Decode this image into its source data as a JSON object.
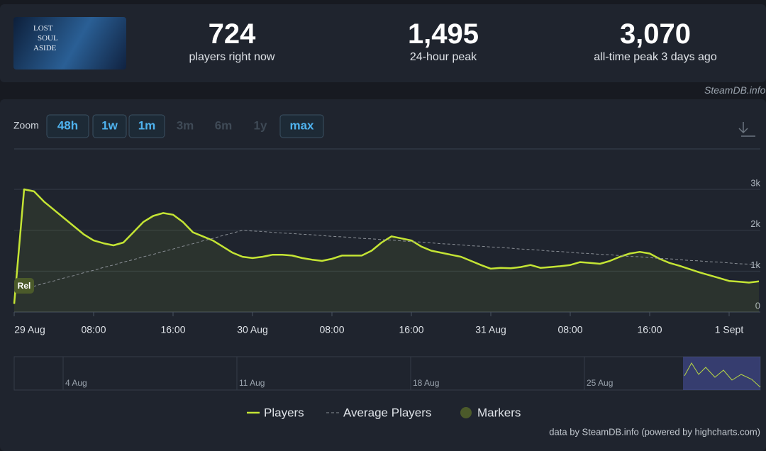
{
  "header": {
    "logo_text": [
      "LOST",
      "SOUL",
      "ASIDE"
    ],
    "stats": [
      {
        "value": "724",
        "label": "players right now"
      },
      {
        "value": "1,495",
        "label": "24-hour peak"
      },
      {
        "value": "3,070",
        "label": "all-time peak 3 days ago"
      }
    ]
  },
  "watermark": "SteamDB.info",
  "zoom": {
    "label": "Zoom",
    "buttons": [
      {
        "text": "48h",
        "state": "active"
      },
      {
        "text": "1w",
        "state": "active"
      },
      {
        "text": "1m",
        "state": "active"
      },
      {
        "text": "3m",
        "state": "disabled"
      },
      {
        "text": "6m",
        "state": "disabled"
      },
      {
        "text": "1y",
        "state": "disabled"
      },
      {
        "text": "max",
        "state": "selected"
      }
    ]
  },
  "chart_data": {
    "type": "line",
    "categories": [
      "29 Aug",
      null,
      null,
      null,
      null,
      null,
      null,
      null,
      "08:00",
      null,
      null,
      null,
      null,
      null,
      null,
      null,
      "16:00",
      null,
      null,
      null,
      null,
      null,
      null,
      null,
      "30 Aug",
      null,
      null,
      null,
      null,
      null,
      null,
      null,
      "08:00",
      null,
      null,
      null,
      null,
      null,
      null,
      null,
      "16:00",
      null,
      null,
      null,
      null,
      null,
      null,
      null,
      "31 Aug",
      null,
      null,
      null,
      null,
      null,
      null,
      null,
      "08:00",
      null,
      null,
      null,
      null,
      null,
      null,
      null,
      "16:00",
      null,
      null,
      null,
      null,
      null,
      null,
      null,
      "1 Sept",
      null,
      null,
      null
    ],
    "series": [
      {
        "name": "Players",
        "color": "#c4e434",
        "values": [
          200,
          3000,
          2950,
          2700,
          2500,
          2300,
          2100,
          1900,
          1750,
          1680,
          1630,
          1700,
          1950,
          2200,
          2350,
          2420,
          2380,
          2200,
          1950,
          1850,
          1750,
          1600,
          1450,
          1350,
          1320,
          1350,
          1400,
          1400,
          1380,
          1320,
          1280,
          1250,
          1300,
          1380,
          1380,
          1380,
          1500,
          1700,
          1850,
          1800,
          1750,
          1600,
          1500,
          1450,
          1400,
          1350,
          1250,
          1150,
          1060,
          1080,
          1070,
          1100,
          1150,
          1080,
          1100,
          1120,
          1150,
          1220,
          1200,
          1180,
          1250,
          1350,
          1430,
          1470,
          1430,
          1300,
          1200,
          1130,
          1050,
          970,
          900,
          830,
          760,
          740,
          720,
          750
        ]
      },
      {
        "name": "Average Players",
        "color": "#8a8f96",
        "dashed": true,
        "values": [
          500,
          560,
          630,
          700,
          760,
          830,
          890,
          960,
          1020,
          1090,
          1150,
          1220,
          1280,
          1350,
          1410,
          1480,
          1540,
          1610,
          1670,
          1740,
          1800,
          1870,
          1930,
          2000,
          1980,
          1970,
          1950,
          1930,
          1920,
          1900,
          1890,
          1870,
          1850,
          1840,
          1820,
          1800,
          1790,
          1770,
          1760,
          1740,
          1720,
          1710,
          1690,
          1670,
          1660,
          1640,
          1620,
          1610,
          1590,
          1580,
          1560,
          1540,
          1530,
          1510,
          1490,
          1480,
          1460,
          1440,
          1430,
          1410,
          1400,
          1380,
          1360,
          1350,
          1330,
          1310,
          1300,
          1280,
          1260,
          1250,
          1230,
          1220,
          1200,
          1180,
          1170,
          1150
        ]
      }
    ],
    "markers": {
      "name": "Markers",
      "color": "#4b5a2a",
      "label": "Rel"
    },
    "ylim": [
      0,
      3000
    ],
    "yticks": [
      0,
      {
        "value": 1000,
        "label": "1k"
      },
      {
        "value": 2000,
        "label": "2k"
      },
      {
        "value": 3000,
        "label": "3k"
      }
    ],
    "grid": true,
    "navigator": [
      "4 Aug",
      "11 Aug",
      "18 Aug",
      "25 Aug"
    ],
    "credit": "data by SteamDB.info (powered by highcharts.com)"
  }
}
